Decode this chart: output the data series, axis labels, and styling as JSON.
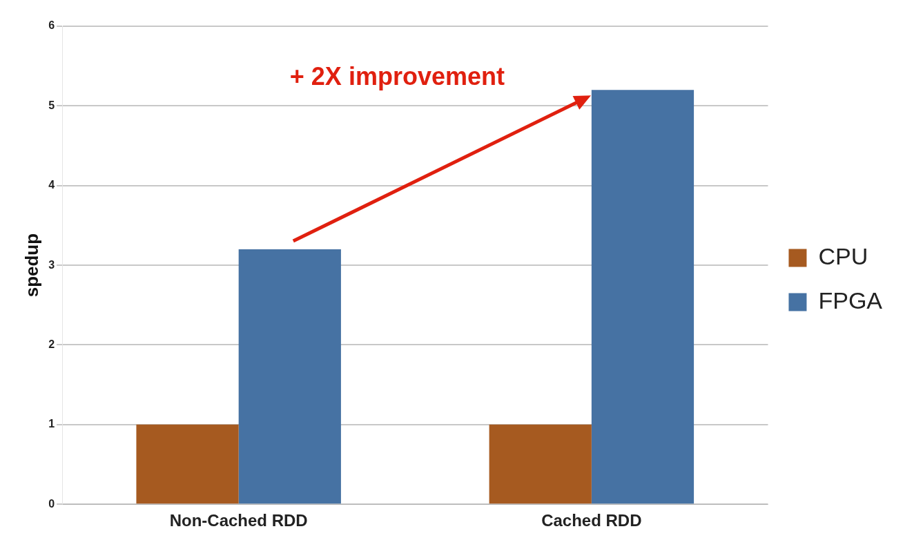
{
  "chart_data": {
    "type": "bar",
    "ylabel": "spedup",
    "categories": [
      "Non-Cached RDD",
      "Cached RDD"
    ],
    "series": [
      {
        "name": "CPU",
        "color": "#a65a20",
        "values": [
          1,
          1
        ]
      },
      {
        "name": "FPGA",
        "color": "#4672a3",
        "values": [
          3.2,
          5.2
        ]
      }
    ],
    "ylim": [
      0,
      6
    ],
    "yticks": [
      0,
      1,
      2,
      3,
      4,
      5,
      6
    ],
    "grid": "y",
    "legend": "right",
    "annotations": [
      "+ 2X improvement"
    ]
  }
}
